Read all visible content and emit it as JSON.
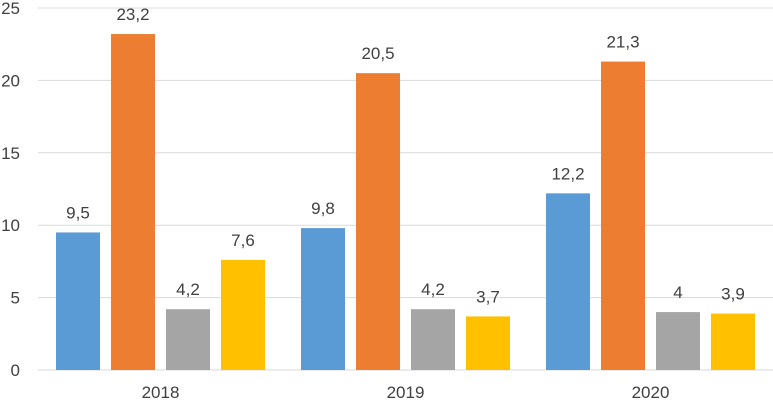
{
  "chart_data": {
    "type": "bar",
    "categories": [
      "2018",
      "2019",
      "2020"
    ],
    "series": [
      {
        "color": "#5B9BD5",
        "values": [
          9.5,
          9.8,
          12.2
        ],
        "labels": [
          "9,5",
          "9,8",
          "12,2"
        ]
      },
      {
        "color": "#ED7D31",
        "values": [
          23.2,
          20.5,
          21.3
        ],
        "labels": [
          "23,2",
          "20,5",
          "21,3"
        ]
      },
      {
        "color": "#A5A5A5",
        "values": [
          4.2,
          4.2,
          4.0
        ],
        "labels": [
          "4,2",
          "4,2",
          "4"
        ]
      },
      {
        "color": "#FFC000",
        "values": [
          7.6,
          3.7,
          3.9
        ],
        "labels": [
          "7,6",
          "3,7",
          "3,9"
        ]
      }
    ],
    "yticks": [
      0,
      5,
      10,
      15,
      20,
      25
    ],
    "ylim": [
      0,
      25
    ],
    "grid": true,
    "legend": "none",
    "title": "",
    "xlabel": "",
    "ylabel": ""
  }
}
